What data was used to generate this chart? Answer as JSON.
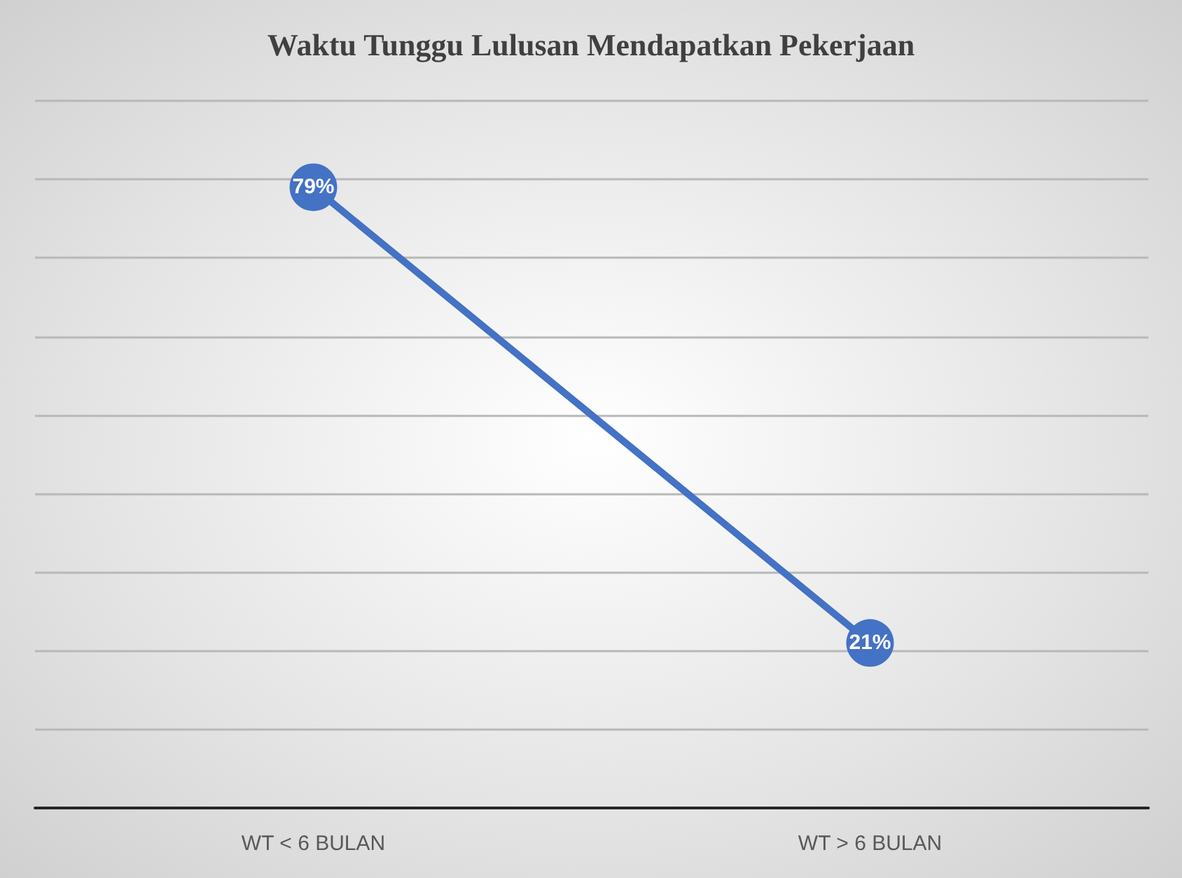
{
  "chart_data": {
    "type": "line",
    "title": "Waktu Tunggu Lulusan Mendapatkan Pekerjaan",
    "categories": [
      "WT < 6 BULAN",
      "WT > 6 BULAN"
    ],
    "series": [
      {
        "color": "#4472c4",
        "values": [
          79,
          21
        ],
        "value_labels": [
          "79%",
          "21%"
        ]
      }
    ],
    "ylim": [
      0,
      90
    ],
    "yticks": [
      {
        "value": 0,
        "label": null
      },
      {
        "value": 10,
        "label": null
      },
      {
        "value": 20,
        "label": null
      },
      {
        "value": 30,
        "label": null
      },
      {
        "value": 40,
        "label": null
      },
      {
        "value": 50,
        "label": null
      },
      {
        "value": 60,
        "label": null
      },
      {
        "value": 70,
        "label": null
      },
      {
        "value": 80,
        "label": null
      },
      {
        "value": 90,
        "label": null
      }
    ],
    "tick_labels": "x",
    "grid": "y",
    "marker": "circle",
    "line_style": "solid"
  }
}
